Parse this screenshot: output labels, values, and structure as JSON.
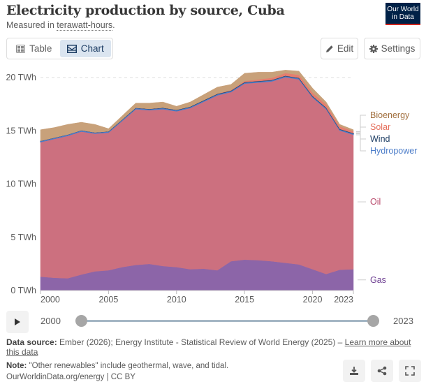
{
  "header": {
    "title": "Electricity production by source, Cuba",
    "subtitle_prefix": "Measured in ",
    "subtitle_link": "terawatt-hours",
    "subtitle_suffix": ".",
    "logo_line1": "Our World",
    "logo_line2": "in Data"
  },
  "toolbar": {
    "tabs": [
      {
        "label": "Table",
        "icon": "table-icon"
      },
      {
        "label": "Chart",
        "icon": "chart-icon",
        "active": true
      }
    ],
    "edit_label": "Edit",
    "settings_label": "Settings"
  },
  "timeline": {
    "start_year": "2000",
    "end_year": "2023",
    "range": [
      2000,
      2023
    ]
  },
  "footer": {
    "source_label": "Data source:",
    "source_text": " Ember (2026); Energy Institute - Statistical Review of World Energy (2025) – ",
    "source_link": "Learn more about this data",
    "note_label": "Note:",
    "note_text": " \"Other renewables\" include geothermal, wave, and tidal.",
    "license": "OurWorldinData.org/energy | CC BY"
  },
  "colors": {
    "gas": "#8c65a8",
    "oil": "#cc707f",
    "hydropower": "#4c7dc9",
    "wind": "#1d3d63",
    "solar": "#e57e6f",
    "bioenergy": "#c8a17a"
  },
  "chart_data": {
    "type": "area",
    "stacked": true,
    "title": "Electricity production by source, Cuba",
    "ylabel": "TWh",
    "ylim": [
      0,
      20
    ],
    "yticks": [
      0,
      5,
      10,
      15,
      20
    ],
    "ytick_labels": [
      "0 TWh",
      "5 TWh",
      "10 TWh",
      "15 TWh",
      "20 TWh"
    ],
    "xticks": [
      2000,
      2005,
      2010,
      2015,
      2020,
      2023
    ],
    "xtick_labels": [
      "2000",
      "2005",
      "2010",
      "2015",
      "2020",
      "2023"
    ],
    "grid": "horizontal-dashed",
    "legend": "right",
    "x": [
      2000,
      2001,
      2002,
      2003,
      2004,
      2005,
      2006,
      2007,
      2008,
      2009,
      2010,
      2011,
      2012,
      2013,
      2014,
      2015,
      2016,
      2017,
      2018,
      2019,
      2020,
      2021,
      2022,
      2023
    ],
    "series": [
      {
        "name": "Gas",
        "values": [
          1.3,
          1.2,
          1.15,
          1.5,
          1.8,
          1.9,
          2.2,
          2.4,
          2.5,
          2.3,
          2.2,
          2.0,
          2.05,
          1.9,
          2.75,
          2.9,
          2.85,
          2.75,
          2.6,
          2.45,
          2.0,
          1.55,
          1.95,
          2.0
        ]
      },
      {
        "name": "Oil",
        "values": [
          12.65,
          13.05,
          13.4,
          13.45,
          12.95,
          12.95,
          13.75,
          14.65,
          14.45,
          14.75,
          14.65,
          15.15,
          15.7,
          16.45,
          15.9,
          16.55,
          16.7,
          16.9,
          17.45,
          17.4,
          16.15,
          15.5,
          13.1,
          12.65
        ]
      },
      {
        "name": "Hydropower",
        "values": [
          0.1,
          0.1,
          0.1,
          0.1,
          0.1,
          0.1,
          0.1,
          0.1,
          0.1,
          0.1,
          0.1,
          0.1,
          0.1,
          0.1,
          0.1,
          0.1,
          0.1,
          0.1,
          0.1,
          0.1,
          0.1,
          0.1,
          0.1,
          0.1
        ]
      },
      {
        "name": "Wind",
        "values": [
          0,
          0,
          0,
          0,
          0,
          0,
          0,
          0.01,
          0.01,
          0.02,
          0.02,
          0.02,
          0.02,
          0.02,
          0.02,
          0.02,
          0.02,
          0.02,
          0.02,
          0.02,
          0.02,
          0.02,
          0.02,
          0.02
        ]
      },
      {
        "name": "Solar",
        "values": [
          0,
          0,
          0,
          0,
          0,
          0,
          0,
          0,
          0,
          0,
          0,
          0,
          0.01,
          0.02,
          0.05,
          0.1,
          0.15,
          0.2,
          0.25,
          0.28,
          0.3,
          0.3,
          0.25,
          0.2
        ]
      },
      {
        "name": "Bioenergy",
        "values": [
          1.05,
          0.95,
          0.95,
          0.75,
          0.75,
          0.25,
          0.35,
          0.44,
          0.54,
          0.53,
          0.33,
          0.43,
          0.52,
          0.61,
          0.53,
          0.73,
          0.68,
          0.53,
          0.28,
          0.35,
          0.43,
          0.23,
          0.18,
          0.13
        ]
      }
    ]
  }
}
